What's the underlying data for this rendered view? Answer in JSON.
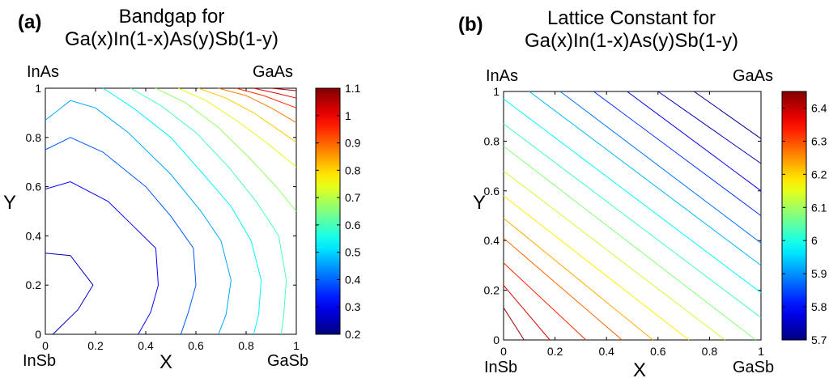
{
  "chart_data": [
    {
      "type": "contour",
      "panel_label": "(a)",
      "title_line1": "Bandgap for",
      "title_line2": "Ga(x)In(1-x)As(y)Sb(1-y)",
      "xlabel": "X",
      "ylabel": "Y",
      "xlim": [
        0,
        1
      ],
      "ylim": [
        0,
        1
      ],
      "x_ticks": [
        "0",
        "0.2",
        "0.4",
        "0.6",
        "0.8",
        "1"
      ],
      "y_ticks": [
        "0",
        "0.2",
        "0.4",
        "0.6",
        "0.8",
        "1"
      ],
      "corner_labels": {
        "top_left": "InAs",
        "top_right": "GaAs",
        "bottom_left": "InSb",
        "bottom_right": "GaSb"
      },
      "colorbar": {
        "min": 0.2,
        "max": 1.1,
        "ticks": [
          "0.2",
          "0.3",
          "0.4",
          "0.5",
          "0.6",
          "0.7",
          "0.8",
          "0.9",
          "1",
          "1.1"
        ]
      },
      "contours": [
        {
          "level": 0.25,
          "points": [
            [
              0.0,
              0.33
            ],
            [
              0.1,
              0.32
            ],
            [
              0.19,
              0.2
            ],
            [
              0.13,
              0.1
            ],
            [
              0.03,
              0.0
            ]
          ]
        },
        {
          "level": 0.32,
          "points": [
            [
              0.0,
              0.59
            ],
            [
              0.1,
              0.62
            ],
            [
              0.25,
              0.54
            ],
            [
              0.34,
              0.45
            ],
            [
              0.44,
              0.35
            ],
            [
              0.45,
              0.2
            ],
            [
              0.42,
              0.09
            ],
            [
              0.37,
              0.0
            ]
          ]
        },
        {
          "level": 0.39,
          "points": [
            [
              0.0,
              0.75
            ],
            [
              0.1,
              0.8
            ],
            [
              0.23,
              0.74
            ],
            [
              0.4,
              0.6
            ],
            [
              0.5,
              0.48
            ],
            [
              0.59,
              0.35
            ],
            [
              0.6,
              0.2
            ],
            [
              0.57,
              0.09
            ],
            [
              0.54,
              0.0
            ]
          ]
        },
        {
          "level": 0.46,
          "points": [
            [
              0.0,
              0.87
            ],
            [
              0.1,
              0.95
            ],
            [
              0.2,
              0.92
            ],
            [
              0.33,
              0.82
            ],
            [
              0.5,
              0.65
            ],
            [
              0.62,
              0.5
            ],
            [
              0.7,
              0.38
            ],
            [
              0.74,
              0.22
            ],
            [
              0.72,
              0.08
            ],
            [
              0.69,
              0.0
            ]
          ]
        },
        {
          "level": 0.53,
          "points": [
            [
              0.23,
              1.0
            ],
            [
              0.35,
              0.92
            ],
            [
              0.5,
              0.8
            ],
            [
              0.63,
              0.65
            ],
            [
              0.74,
              0.52
            ],
            [
              0.82,
              0.38
            ],
            [
              0.86,
              0.22
            ],
            [
              0.85,
              0.08
            ],
            [
              0.83,
              0.0
            ]
          ]
        },
        {
          "level": 0.6,
          "points": [
            [
              0.34,
              1.0
            ],
            [
              0.46,
              0.93
            ],
            [
              0.6,
              0.82
            ],
            [
              0.73,
              0.68
            ],
            [
              0.84,
              0.54
            ],
            [
              0.93,
              0.4
            ],
            [
              0.96,
              0.22
            ],
            [
              0.95,
              0.08
            ],
            [
              0.94,
              0.0
            ]
          ]
        },
        {
          "level": 0.67,
          "points": [
            [
              0.44,
              1.0
            ],
            [
              0.56,
              0.94
            ],
            [
              0.69,
              0.84
            ],
            [
              0.81,
              0.72
            ],
            [
              0.92,
              0.6
            ],
            [
              1.0,
              0.5
            ]
          ]
        },
        {
          "level": 0.74,
          "points": [
            [
              0.53,
              1.0
            ],
            [
              0.64,
              0.95
            ],
            [
              0.76,
              0.87
            ],
            [
              0.88,
              0.78
            ],
            [
              1.0,
              0.68
            ]
          ]
        },
        {
          "level": 0.81,
          "points": [
            [
              0.61,
              1.0
            ],
            [
              0.72,
              0.96
            ],
            [
              0.83,
              0.9
            ],
            [
              0.93,
              0.83
            ],
            [
              1.0,
              0.78
            ]
          ]
        },
        {
          "level": 0.88,
          "points": [
            [
              0.69,
              1.0
            ],
            [
              0.8,
              0.97
            ],
            [
              0.9,
              0.92
            ],
            [
              1.0,
              0.86
            ]
          ]
        },
        {
          "level": 0.95,
          "points": [
            [
              0.76,
              1.0
            ],
            [
              0.87,
              0.97
            ],
            [
              1.0,
              0.92
            ]
          ]
        },
        {
          "level": 1.01,
          "points": [
            [
              0.83,
              1.0
            ],
            [
              0.92,
              0.98
            ],
            [
              1.0,
              0.96
            ]
          ]
        },
        {
          "level": 1.06,
          "points": [
            [
              0.9,
              1.0
            ],
            [
              1.0,
              0.99
            ]
          ]
        }
      ]
    },
    {
      "type": "contour",
      "panel_label": "(b)",
      "title_line1": "Lattice Constant for",
      "title_line2": "Ga(x)In(1-x)As(y)Sb(1-y)",
      "xlabel": "X",
      "ylabel": "Y",
      "xlim": [
        0,
        1
      ],
      "ylim": [
        0,
        1
      ],
      "x_ticks": [
        "0",
        "0.2",
        "0.4",
        "0.6",
        "0.8",
        "1"
      ],
      "y_ticks": [
        "0",
        "0.2",
        "0.4",
        "0.6",
        "0.8",
        "1"
      ],
      "corner_labels": {
        "top_left": "InAs",
        "top_right": "GaAs",
        "bottom_left": "InSb",
        "bottom_right": "GaSb"
      },
      "colorbar": {
        "min": 5.7,
        "max": 6.45,
        "ticks": [
          "5.7",
          "5.8",
          "5.9",
          "6",
          "6.1",
          "6.2",
          "6.3",
          "6.4"
        ]
      },
      "contours": [
        {
          "level": 6.43,
          "points": [
            [
              0.0,
              0.13
            ],
            [
              0.08,
              0.0
            ]
          ]
        },
        {
          "level": 6.38,
          "points": [
            [
              0.0,
              0.22
            ],
            [
              0.18,
              0.0
            ]
          ]
        },
        {
          "level": 6.33,
          "points": [
            [
              0.0,
              0.31
            ],
            [
              0.32,
              0.0
            ]
          ]
        },
        {
          "level": 6.28,
          "points": [
            [
              0.0,
              0.41
            ],
            [
              0.46,
              0.0
            ]
          ]
        },
        {
          "level": 6.23,
          "points": [
            [
              0.0,
              0.49
            ],
            [
              0.58,
              0.0
            ]
          ]
        },
        {
          "level": 6.18,
          "points": [
            [
              0.0,
              0.58
            ],
            [
              0.72,
              0.0
            ]
          ]
        },
        {
          "level": 6.13,
          "points": [
            [
              0.0,
              0.68
            ],
            [
              0.86,
              0.0
            ]
          ]
        },
        {
          "level": 6.08,
          "points": [
            [
              0.0,
              0.78
            ],
            [
              0.98,
              0.0
            ]
          ]
        },
        {
          "level": 6.03,
          "points": [
            [
              0.0,
              0.87
            ],
            [
              1.0,
              0.09
            ]
          ]
        },
        {
          "level": 5.98,
          "points": [
            [
              0.0,
              0.97
            ],
            [
              1.0,
              0.19
            ]
          ]
        },
        {
          "level": 5.93,
          "points": [
            [
              0.1,
              1.0
            ],
            [
              1.0,
              0.3
            ]
          ]
        },
        {
          "level": 5.88,
          "points": [
            [
              0.22,
              1.0
            ],
            [
              1.0,
              0.39
            ]
          ]
        },
        {
          "level": 5.83,
          "points": [
            [
              0.35,
              1.0
            ],
            [
              1.0,
              0.5
            ]
          ]
        },
        {
          "level": 5.78,
          "points": [
            [
              0.48,
              1.0
            ],
            [
              1.0,
              0.6
            ]
          ]
        },
        {
          "level": 5.74,
          "points": [
            [
              0.6,
              1.0
            ],
            [
              1.0,
              0.71
            ]
          ]
        },
        {
          "level": 5.71,
          "points": [
            [
              0.74,
              1.0
            ],
            [
              1.0,
              0.81
            ]
          ]
        }
      ]
    }
  ]
}
